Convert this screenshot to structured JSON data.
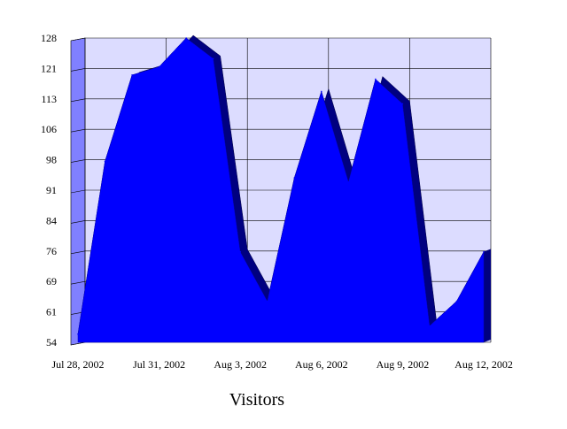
{
  "chart_data": {
    "type": "area",
    "title": "",
    "xlabel": "Visitors",
    "ylabel": "",
    "ylim": [
      54,
      128
    ],
    "y_ticks": [
      "128",
      "121",
      "113",
      "106",
      "98",
      "91",
      "84",
      "76",
      "69",
      "61",
      "54"
    ],
    "x_tick_labels": [
      "Jul 28, 2002",
      "Jul 31, 2002",
      "Aug 3, 2002",
      "Aug 6, 2002",
      "Aug 9, 2002",
      "Aug 12, 2002"
    ],
    "x": [
      "Jul 28, 2002",
      "Jul 29, 2002",
      "Jul 30, 2002",
      "Jul 31, 2002",
      "Aug 1, 2002",
      "Aug 2, 2002",
      "Aug 3, 2002",
      "Aug 4, 2002",
      "Aug 5, 2002",
      "Aug 6, 2002",
      "Aug 7, 2002",
      "Aug 8, 2002",
      "Aug 9, 2002",
      "Aug 10, 2002",
      "Aug 11, 2002",
      "Aug 12, 2002"
    ],
    "series": [
      {
        "values": [
          56,
          98,
          119,
          121,
          128,
          123,
          76,
          64,
          94,
          115,
          93,
          118,
          112,
          58,
          64,
          76
        ]
      }
    ],
    "grid": true,
    "legend": "none",
    "colors": {
      "area": "#0000ff",
      "area_depth": "#000080",
      "plot_background": "#dcdcff",
      "wall": "#8080ff",
      "grid": "#000000"
    }
  }
}
